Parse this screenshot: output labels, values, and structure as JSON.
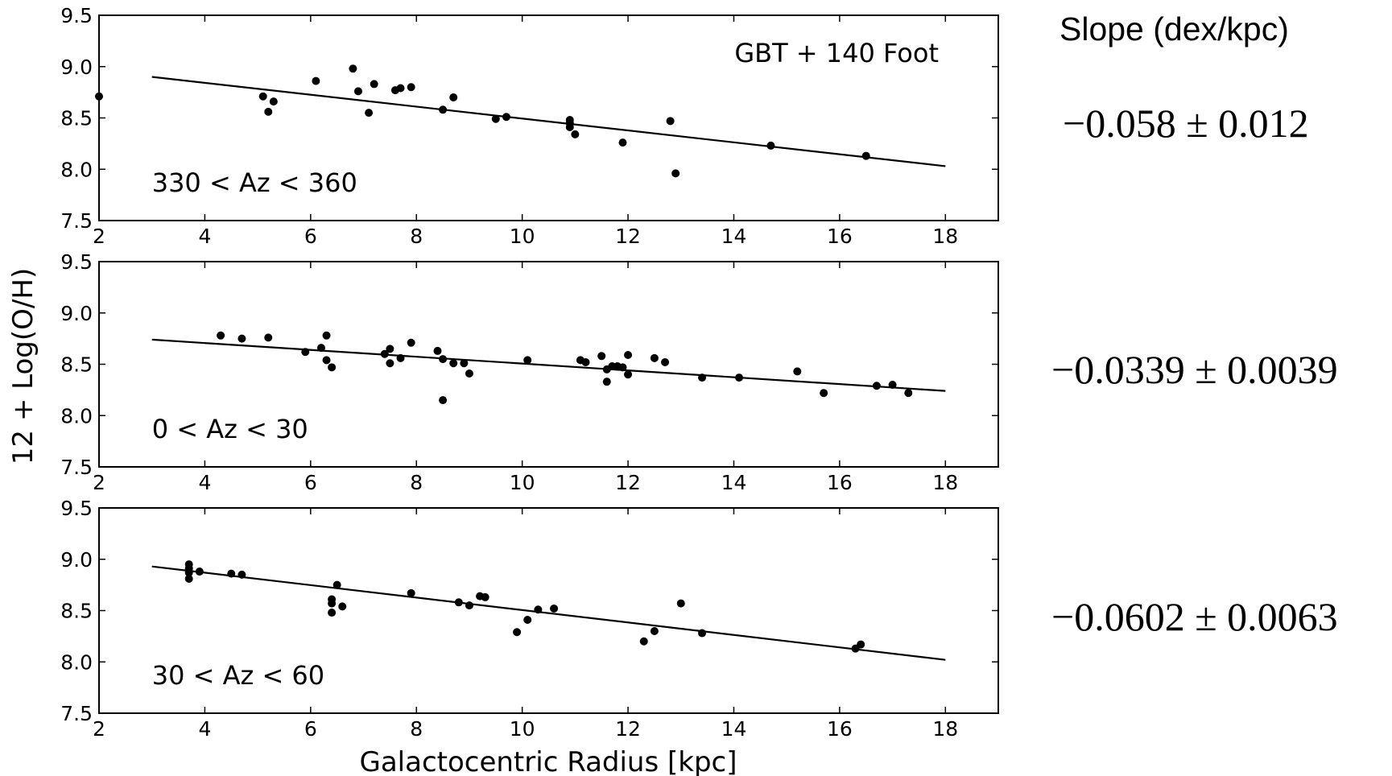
{
  "chart_data": {
    "type": "scatter",
    "xlabel": "Galactocentric Radius [kpc]",
    "ylabel": "12 + Log(O/H)",
    "xlim": [
      2,
      19
    ],
    "ylim": [
      7.5,
      9.5
    ],
    "xticks": [
      "2",
      "4",
      "6",
      "8",
      "10",
      "12",
      "14",
      "16",
      "18"
    ],
    "yticks": [
      "7.5",
      "8.0",
      "8.5",
      "9.0",
      "9.5"
    ],
    "slope_header": "Slope (dex/kpc)",
    "panels": [
      {
        "label": "330 < Az < 360",
        "annotation": "GBT + 140 Foot",
        "slope": "−0.058 ± 0.012",
        "fit": {
          "x": [
            3,
            18
          ],
          "y": [
            8.9,
            8.03
          ]
        },
        "points": [
          [
            2.0,
            8.71
          ],
          [
            5.1,
            8.71
          ],
          [
            5.2,
            8.56
          ],
          [
            5.3,
            8.66
          ],
          [
            6.1,
            8.86
          ],
          [
            6.8,
            8.98
          ],
          [
            6.9,
            8.76
          ],
          [
            7.1,
            8.55
          ],
          [
            7.2,
            8.83
          ],
          [
            7.6,
            8.77
          ],
          [
            7.7,
            8.79
          ],
          [
            7.9,
            8.8
          ],
          [
            8.5,
            8.58
          ],
          [
            8.7,
            8.7
          ],
          [
            9.5,
            8.49
          ],
          [
            9.7,
            8.51
          ],
          [
            10.9,
            8.48
          ],
          [
            10.9,
            8.45
          ],
          [
            10.9,
            8.41
          ],
          [
            11.0,
            8.34
          ],
          [
            11.9,
            8.26
          ],
          [
            12.8,
            8.47
          ],
          [
            12.9,
            7.96
          ],
          [
            14.7,
            8.23
          ],
          [
            16.5,
            8.13
          ]
        ]
      },
      {
        "label": "0 < Az < 30",
        "annotation": "",
        "slope": "−0.0339 ± 0.0039",
        "fit": {
          "x": [
            3,
            18
          ],
          "y": [
            8.74,
            8.24
          ]
        },
        "points": [
          [
            4.3,
            8.78
          ],
          [
            4.7,
            8.75
          ],
          [
            5.2,
            8.76
          ],
          [
            5.9,
            8.62
          ],
          [
            6.2,
            8.66
          ],
          [
            6.3,
            8.78
          ],
          [
            6.3,
            8.54
          ],
          [
            6.4,
            8.47
          ],
          [
            7.4,
            8.6
          ],
          [
            7.5,
            8.65
          ],
          [
            7.5,
            8.51
          ],
          [
            7.7,
            8.56
          ],
          [
            7.9,
            8.71
          ],
          [
            8.4,
            8.63
          ],
          [
            8.5,
            8.55
          ],
          [
            8.5,
            8.15
          ],
          [
            8.7,
            8.51
          ],
          [
            8.9,
            8.51
          ],
          [
            9.0,
            8.41
          ],
          [
            10.1,
            8.54
          ],
          [
            11.1,
            8.54
          ],
          [
            11.2,
            8.52
          ],
          [
            11.5,
            8.58
          ],
          [
            11.6,
            8.45
          ],
          [
            11.6,
            8.33
          ],
          [
            11.7,
            8.48
          ],
          [
            11.8,
            8.48
          ],
          [
            11.9,
            8.47
          ],
          [
            12.0,
            8.59
          ],
          [
            12.0,
            8.4
          ],
          [
            12.5,
            8.56
          ],
          [
            12.7,
            8.52
          ],
          [
            13.4,
            8.37
          ],
          [
            14.1,
            8.37
          ],
          [
            15.2,
            8.43
          ],
          [
            15.7,
            8.22
          ],
          [
            16.7,
            8.29
          ],
          [
            17.0,
            8.3
          ],
          [
            17.3,
            8.22
          ]
        ]
      },
      {
        "label": "30 < Az < 60",
        "annotation": "",
        "slope": "−0.0602 ± 0.0063",
        "fit": {
          "x": [
            3,
            18
          ],
          "y": [
            8.93,
            8.02
          ]
        },
        "points": [
          [
            3.7,
            8.95
          ],
          [
            3.7,
            8.91
          ],
          [
            3.7,
            8.87
          ],
          [
            3.7,
            8.81
          ],
          [
            3.9,
            8.88
          ],
          [
            4.5,
            8.86
          ],
          [
            4.7,
            8.85
          ],
          [
            6.4,
            8.61
          ],
          [
            6.4,
            8.57
          ],
          [
            6.4,
            8.48
          ],
          [
            6.5,
            8.75
          ],
          [
            6.6,
            8.54
          ],
          [
            7.9,
            8.67
          ],
          [
            8.8,
            8.58
          ],
          [
            9.0,
            8.55
          ],
          [
            9.2,
            8.64
          ],
          [
            9.3,
            8.63
          ],
          [
            9.9,
            8.29
          ],
          [
            10.1,
            8.41
          ],
          [
            10.3,
            8.51
          ],
          [
            10.6,
            8.52
          ],
          [
            12.3,
            8.2
          ],
          [
            12.5,
            8.3
          ],
          [
            13.0,
            8.57
          ],
          [
            13.4,
            8.28
          ],
          [
            16.3,
            8.13
          ],
          [
            16.4,
            8.17
          ]
        ]
      }
    ]
  }
}
